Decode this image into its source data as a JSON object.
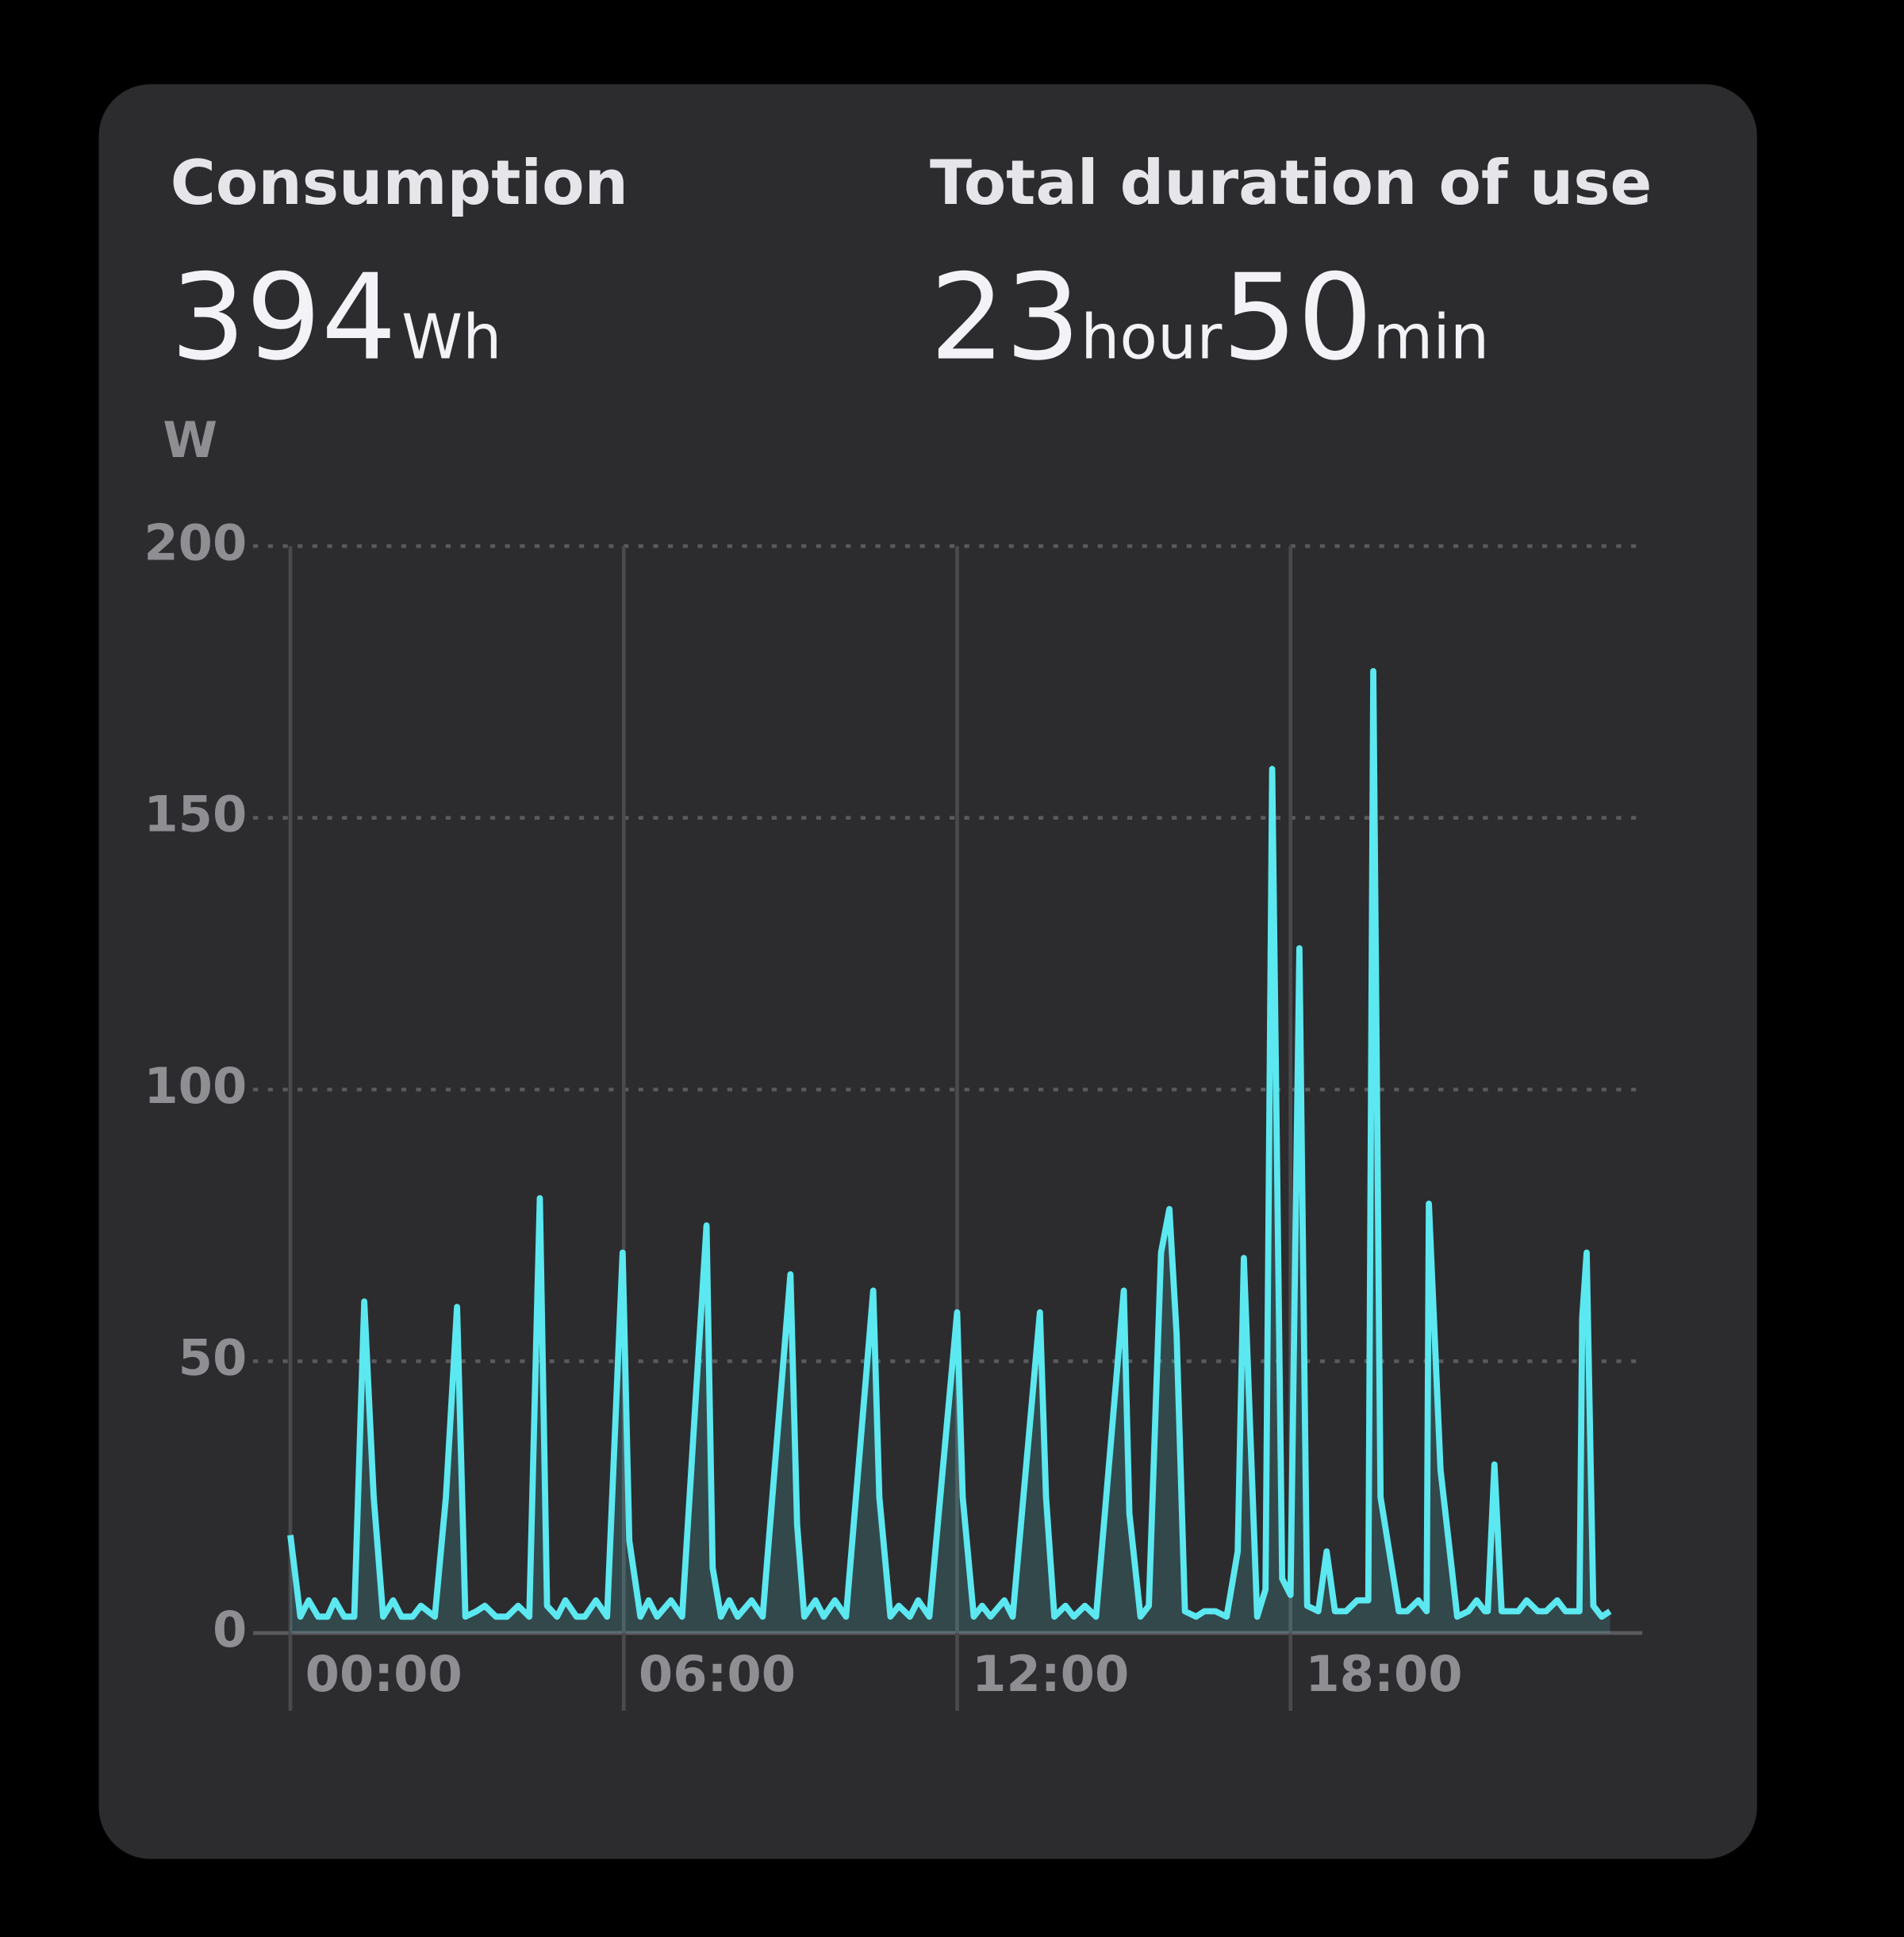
{
  "header": {
    "consumption": {
      "label": "Consumption",
      "value": 394,
      "unit": "Wh"
    },
    "duration": {
      "label": "Total duration of use",
      "hours": 23,
      "hour_unit": "hour",
      "minutes": 50,
      "minute_unit": "min"
    }
  },
  "chart_data": {
    "type": "line",
    "y_label": "W",
    "x": [
      0,
      0.18,
      0.33,
      0.5,
      0.67,
      0.8,
      0.97,
      1.15,
      1.33,
      1.5,
      1.67,
      1.85,
      2.0,
      2.2,
      2.35,
      2.6,
      2.8,
      3.0,
      3.15,
      3.35,
      3.5,
      3.7,
      3.9,
      4.1,
      4.3,
      4.49,
      4.62,
      4.8,
      4.95,
      5.15,
      5.3,
      5.5,
      5.7,
      5.98,
      6.1,
      6.3,
      6.45,
      6.6,
      6.85,
      7.05,
      7.49,
      7.6,
      7.75,
      7.9,
      8.05,
      8.3,
      8.5,
      9.0,
      9.12,
      9.25,
      9.45,
      9.6,
      9.8,
      10.0,
      10.49,
      10.6,
      10.8,
      10.95,
      11.15,
      11.3,
      11.5,
      12.0,
      12.1,
      12.3,
      12.45,
      12.6,
      12.85,
      13.0,
      13.49,
      13.6,
      13.75,
      13.95,
      14.1,
      14.3,
      14.5,
      15.0,
      15.1,
      15.3,
      15.45,
      15.67,
      15.82,
      15.95,
      16.1,
      16.3,
      16.45,
      16.65,
      16.85,
      17.05,
      17.16,
      17.4,
      17.55,
      17.67,
      17.85,
      18.0,
      18.16,
      18.3,
      18.5,
      18.65,
      18.8,
      19.0,
      19.2,
      19.4,
      19.49,
      19.62,
      19.95,
      20.1,
      20.3,
      20.45,
      20.49,
      20.7,
      21.0,
      21.2,
      21.35,
      21.5,
      21.55,
      21.67,
      21.8,
      22.1,
      22.25,
      22.45,
      22.6,
      22.8,
      22.95,
      23.2,
      23.25,
      23.33,
      23.45,
      23.6,
      23.75
    ],
    "series": [
      {
        "color": "#5ce8f0",
        "values": [
          18,
          3,
          6,
          3,
          3,
          6,
          3,
          3,
          61,
          25,
          3,
          6,
          3,
          3,
          5,
          3,
          25,
          60,
          3,
          4,
          5,
          3,
          3,
          5,
          3,
          80,
          5,
          3,
          6,
          3,
          3,
          6,
          3,
          70,
          17,
          3,
          6,
          3,
          6,
          3,
          75,
          12,
          3,
          6,
          3,
          6,
          3,
          66,
          20,
          3,
          6,
          3,
          6,
          3,
          63,
          25,
          3,
          5,
          3,
          6,
          3,
          59,
          25,
          3,
          5,
          3,
          6,
          3,
          59,
          25,
          3,
          5,
          3,
          5,
          3,
          63,
          22,
          3,
          5,
          70,
          78,
          55,
          4,
          3,
          4,
          4,
          3,
          15,
          69,
          3,
          8,
          159,
          10,
          7,
          126,
          5,
          4,
          15,
          4,
          4,
          6,
          6,
          177,
          25,
          4,
          4,
          6,
          4,
          79,
          30,
          3,
          4,
          6,
          4,
          4,
          31,
          4,
          4,
          6,
          4,
          4,
          6,
          4,
          4,
          58,
          70,
          5,
          3,
          4
        ]
      }
    ],
    "xlim": [
      -0.67,
      24.33
    ],
    "ylim": [
      0,
      200
    ],
    "xticks": [
      {
        "value": 0,
        "label": "00:00"
      },
      {
        "value": 6,
        "label": "06:00"
      },
      {
        "value": 12,
        "label": "12:00"
      },
      {
        "value": 18,
        "label": "18:00"
      }
    ],
    "yticks": [
      0,
      50,
      100,
      150,
      200
    ],
    "grid": true
  }
}
